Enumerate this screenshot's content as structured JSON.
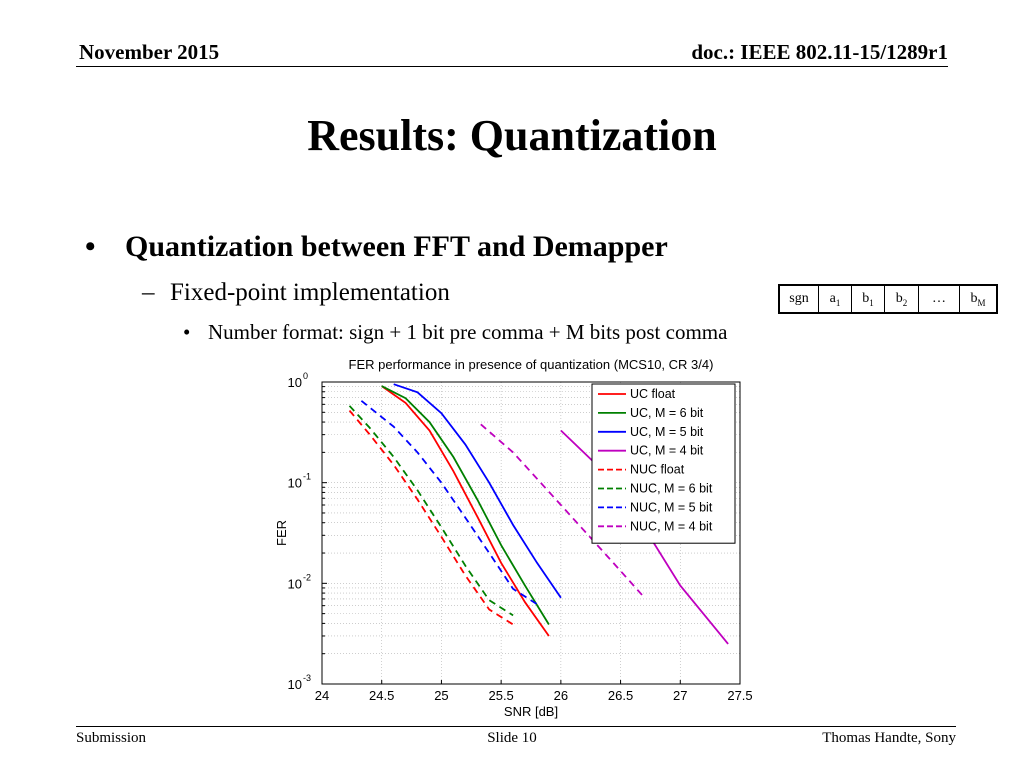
{
  "header": {
    "date": "November 2015",
    "doc": "doc.: IEEE 802.11-15/1289r1"
  },
  "title": "Results: Quantization",
  "bullets": {
    "level1": "Quantization between FFT and Demapper",
    "level2": "Fixed-point implementation",
    "level3": "Number format: sign + 1 bit pre comma + M bits post comma",
    "bullet_glyph": "•",
    "dash_glyph": "–"
  },
  "bit_format": [
    {
      "main": "sgn",
      "sub": ""
    },
    {
      "main": "a",
      "sub": "1"
    },
    {
      "main": "b",
      "sub": "1"
    },
    {
      "main": "b",
      "sub": "2"
    },
    {
      "main": "…",
      "sub": ""
    },
    {
      "main": "b",
      "sub": "M"
    }
  ],
  "footer": {
    "left": "Submission",
    "center": "Slide 10",
    "right": "Thomas Handte, Sony"
  },
  "chart_data": {
    "type": "line",
    "title": "FER performance in presence of quantization (MCS10, CR 3/4)",
    "xlabel": "SNR [dB]",
    "ylabel": "FER",
    "xlim": [
      24,
      27.5
    ],
    "ylim": [
      0.001,
      1
    ],
    "yscale": "log",
    "grid": true,
    "xticks": [
      "24",
      "24.5",
      "25",
      "25.5",
      "26",
      "26.5",
      "27",
      "27.5"
    ],
    "yticks": [
      {
        "base": "10",
        "exp": "0"
      },
      {
        "base": "10",
        "exp": "-1"
      },
      {
        "base": "10",
        "exp": "-2"
      },
      {
        "base": "10",
        "exp": "-3"
      }
    ],
    "legend_position": "top-right",
    "series": [
      {
        "name": "UC float",
        "color": "#ff0000",
        "dash": false,
        "x": [
          24.5,
          24.7,
          24.9,
          25.1,
          25.3,
          25.5,
          25.7,
          25.9
        ],
        "y": [
          0.91,
          0.62,
          0.33,
          0.13,
          0.046,
          0.016,
          0.0065,
          0.003
        ]
      },
      {
        "name": "UC, M = 6 bit",
        "color": "#008000",
        "dash": false,
        "x": [
          24.5,
          24.7,
          24.9,
          25.1,
          25.3,
          25.5,
          25.7,
          25.9
        ],
        "y": [
          0.91,
          0.69,
          0.4,
          0.18,
          0.068,
          0.024,
          0.0095,
          0.0039
        ]
      },
      {
        "name": "UC, M = 5 bit",
        "color": "#0000ff",
        "dash": false,
        "x": [
          24.6,
          24.8,
          25.0,
          25.2,
          25.4,
          25.6,
          25.8,
          26.0
        ],
        "y": [
          0.95,
          0.79,
          0.49,
          0.24,
          0.1,
          0.038,
          0.016,
          0.0072
        ]
      },
      {
        "name": "UC, M = 4 bit",
        "color": "#bf00bf",
        "dash": false,
        "x": [
          26.0,
          26.3,
          26.6,
          27.0,
          27.4
        ],
        "y": [
          0.33,
          0.15,
          0.055,
          0.0095,
          0.0025
        ]
      },
      {
        "name": "NUC float",
        "color": "#ff0000",
        "dash": true,
        "x": [
          24.23,
          24.4,
          24.6,
          24.8,
          25.0,
          25.2,
          25.4,
          25.6
        ],
        "y": [
          0.52,
          0.3,
          0.15,
          0.068,
          0.029,
          0.012,
          0.0055,
          0.0039
        ]
      },
      {
        "name": "NUC, M = 6 bit",
        "color": "#008000",
        "dash": true,
        "x": [
          24.23,
          24.4,
          24.6,
          24.8,
          25.0,
          25.2,
          25.4,
          25.6
        ],
        "y": [
          0.58,
          0.35,
          0.18,
          0.084,
          0.036,
          0.015,
          0.0068,
          0.0048
        ]
      },
      {
        "name": "NUC, M = 5 bit",
        "color": "#0000ff",
        "dash": true,
        "x": [
          24.33,
          24.6,
          24.8,
          25.0,
          25.2,
          25.4,
          25.6,
          25.8
        ],
        "y": [
          0.65,
          0.36,
          0.2,
          0.1,
          0.045,
          0.02,
          0.0088,
          0.0062
        ]
      },
      {
        "name": "NUC, M = 4 bit",
        "color": "#bf00bf",
        "dash": true,
        "x": [
          25.33,
          25.6,
          26.0,
          26.4,
          26.7
        ],
        "y": [
          0.38,
          0.2,
          0.06,
          0.018,
          0.0072
        ]
      }
    ]
  }
}
